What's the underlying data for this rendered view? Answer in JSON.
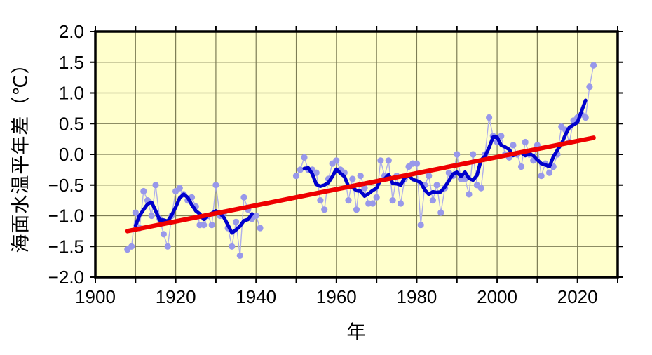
{
  "chart_data": {
    "type": "line",
    "title": "",
    "xlabel": "年",
    "ylabel": "海面水温平年差（℃）",
    "xlim": [
      1900,
      2030
    ],
    "ylim": [
      -2.0,
      2.0
    ],
    "grid": true,
    "x_grid_step_years": 10,
    "y_grid_step": 0.5,
    "x_axis": {
      "tick_years": [
        1900,
        1910,
        1920,
        1930,
        1940,
        1950,
        1960,
        1970,
        1980,
        1990,
        2000,
        2010,
        2020,
        2030
      ],
      "label_years": [
        1900,
        1920,
        1940,
        1960,
        1980,
        2000,
        2020
      ],
      "labels": [
        "1900",
        "1920",
        "1940",
        "1960",
        "1980",
        "2000",
        "2020"
      ]
    },
    "y_axis": {
      "tick_values": [
        2.0,
        1.5,
        1.0,
        0.5,
        0.0,
        -0.5,
        -1.0,
        -1.5,
        -2.0
      ],
      "labels": [
        "2.0",
        "1.5",
        "1.0",
        "0.5",
        "0.0",
        "−0.5",
        "−1.0",
        "−1.5",
        "−2.0"
      ]
    },
    "series": [
      {
        "name": "annual-anomaly",
        "type": "scatter+line",
        "start_year": 1908,
        "note": "null = missing years (wartime data gap)",
        "values": [
          -1.55,
          -1.5,
          -0.95,
          -1.2,
          -0.6,
          -0.75,
          -1.0,
          -0.5,
          -1.05,
          -1.3,
          -1.5,
          -1.0,
          -0.6,
          -0.55,
          -0.65,
          -0.75,
          -0.7,
          -0.85,
          -1.15,
          -1.15,
          -1.0,
          -1.15,
          -0.5,
          -1.0,
          -0.95,
          -1.2,
          -1.5,
          -1.1,
          -1.65,
          -0.7,
          -0.9,
          -1.05,
          -1.0,
          -1.2,
          null,
          null,
          null,
          null,
          null,
          null,
          null,
          null,
          -0.35,
          -0.25,
          -0.05,
          -0.25,
          -0.25,
          -0.3,
          -0.75,
          -0.9,
          -0.4,
          -0.15,
          -0.1,
          -0.25,
          -0.3,
          -0.75,
          -0.4,
          -0.9,
          -0.35,
          -0.55,
          -0.8,
          -0.8,
          -0.7,
          -0.1,
          -0.35,
          -0.1,
          -0.75,
          -0.35,
          -0.8,
          -0.4,
          -0.2,
          -0.15,
          -0.15,
          -1.15,
          -0.5,
          -0.35,
          -0.75,
          -0.5,
          -0.95,
          -0.55,
          -0.3,
          -0.35,
          0.0,
          -0.4,
          -0.4,
          -0.65,
          0.0,
          -0.5,
          -0.55,
          0.0,
          0.6,
          0.3,
          0.2,
          0.3,
          0.0,
          -0.05,
          0.15,
          0.0,
          -0.2,
          0.2,
          0.0,
          -0.1,
          0.15,
          -0.35,
          -0.15,
          -0.3,
          -0.2,
          0.0,
          0.45,
          0.4,
          0.2,
          0.55,
          0.6,
          0.65,
          0.6,
          1.1,
          1.45
        ]
      },
      {
        "name": "five-year-running-mean",
        "type": "line",
        "derived_from": "annual-anomaly",
        "window": 5
      },
      {
        "name": "linear-trend",
        "type": "line",
        "x": [
          1908,
          2024
        ],
        "values": [
          -1.25,
          0.27
        ]
      }
    ],
    "colors": {
      "plot_background": "#ffffcc",
      "grid": "#7d7d55",
      "annual_dot": "#9898ea",
      "annual_line": "#aeaeec",
      "running_mean": "#0000cc",
      "trend": "#ee0000",
      "frame": "#000000",
      "text": "#000000"
    },
    "legend": null
  }
}
